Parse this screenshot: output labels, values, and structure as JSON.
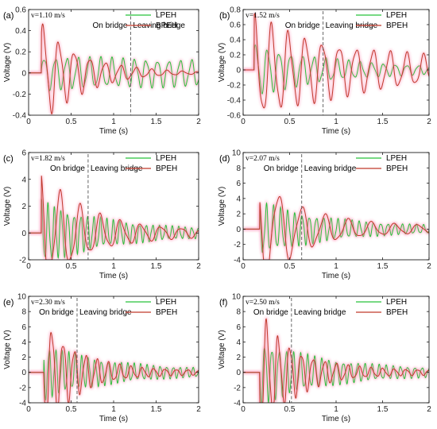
{
  "colors": {
    "LPEH": "#27c23a",
    "BPEH": "#c0392b",
    "glow": "#ff8fb3",
    "divider": "#555555"
  },
  "chart_data": [
    {
      "type": "line",
      "panel": "(a)",
      "velocity": "v=1.10 m/s",
      "xlabel": "Time (s)",
      "ylabel": "Voltage (V)",
      "xlim": [
        0,
        2
      ],
      "ylim": [
        -0.4,
        0.6
      ],
      "xticks": [
        0,
        0.5,
        1,
        1.5,
        2
      ],
      "yticks": [
        -0.4,
        -0.2,
        0,
        0.2,
        0.4,
        0.6
      ],
      "annotations": {
        "on_bridge": "On bridge",
        "leaving_bridge": "Leaving bridge"
      },
      "divider_x": 1.2,
      "series": [
        {
          "name": "LPEH",
          "start": 0.15,
          "freq": 7.5,
          "amp": 0.12,
          "decay": 0.15,
          "amp_x": 0.8,
          "values_note": ""
        },
        {
          "name": "BPEH",
          "peaks": [
            [
              0.2,
              0.4
            ],
            [
              0.27,
              0.47
            ],
            [
              0.23,
              -0.33
            ],
            [
              0.31,
              -0.3
            ],
            [
              0.6,
              0.18
            ],
            [
              1.2,
              -0.06
            ],
            [
              2.0,
              0.05
            ]
          ],
          "start": 0.15,
          "freq": 5.5,
          "amp": 0.45,
          "decay": 2.0
        }
      ],
      "legend": [
        "LPEH",
        "BPEH"
      ]
    },
    {
      "type": "line",
      "panel": "(b)",
      "velocity": "v=1.52 m/s",
      "xlabel": "Time (s)",
      "ylabel": "Voltage (V)",
      "xlim": [
        0,
        2
      ],
      "ylim": [
        -0.6,
        0.8
      ],
      "xticks": [
        0,
        0.5,
        1,
        1.5,
        2
      ],
      "yticks": [
        -0.6,
        -0.4,
        -0.2,
        0,
        0.2,
        0.4,
        0.6,
        0.8
      ],
      "annotations": {
        "on_bridge": "On bridge",
        "leaving_bridge": "Leaving bridge"
      },
      "divider_x": 0.86,
      "series": [
        {
          "name": "LPEH",
          "start": 0.12,
          "freq": 8.0,
          "amp": 0.3,
          "decay": 1.1,
          "amp_x": 0.2
        },
        {
          "name": "BPEH",
          "start": 0.12,
          "freq": 5.5,
          "amp": 0.55,
          "decay": 0.9,
          "amp_x": 0.6
        }
      ],
      "legend": [
        "LPEH",
        "BPEH"
      ]
    },
    {
      "type": "line",
      "panel": "(c)",
      "velocity": "v=1.82 m/s",
      "xlabel": "Time (s)",
      "ylabel": "Voltage (V)",
      "xlim": [
        0,
        2
      ],
      "ylim": [
        -2,
        6
      ],
      "xticks": [
        0,
        0.5,
        1,
        1.5,
        2
      ],
      "yticks": [
        -2,
        0,
        2,
        4,
        6
      ],
      "annotations": {
        "on_bridge": "On bridge",
        "leaving_bridge": "Leaving bridge"
      },
      "divider_x": 0.7,
      "series": [
        {
          "name": "LPEH",
          "start": 0.15,
          "freq": 13.0,
          "amp": 2.0,
          "decay": 1.2,
          "amp_x": 0.3
        },
        {
          "name": "BPEH",
          "start": 0.15,
          "freq": 4.2,
          "amp": 4.0,
          "decay": 1.9,
          "amp_x": 0.2
        }
      ],
      "legend": [
        "LPEH",
        "BPEH"
      ]
    },
    {
      "type": "line",
      "panel": "(d)",
      "velocity": "v=2.07 m/s",
      "xlabel": "Time (s)",
      "ylabel": "Voltage (V)",
      "xlim": [
        0,
        2
      ],
      "ylim": [
        -4,
        10
      ],
      "xticks": [
        0,
        0.5,
        1,
        1.5,
        2
      ],
      "yticks": [
        -4,
        -2,
        0,
        2,
        4,
        6,
        8,
        10
      ],
      "annotations": {
        "on_bridge": "On bridge",
        "leaving_bridge": "Leaving bridge"
      },
      "divider_x": 0.63,
      "series": [
        {
          "name": "LPEH",
          "start": 0.18,
          "freq": 13.0,
          "amp": 3.0,
          "decay": 1.3,
          "amp_x": 0.3
        },
        {
          "name": "BPEH",
          "start": 0.18,
          "freq": 4.0,
          "amp": 6.5,
          "decay": 2.2,
          "amp_x": 0.25
        }
      ],
      "legend": [
        "LPEH",
        "BPEH"
      ]
    },
    {
      "type": "line",
      "panel": "(e)",
      "velocity": "v=2.30 m/s",
      "xlabel": "Time (s)",
      "ylabel": "Voltage (V)",
      "xlim": [
        0,
        2
      ],
      "ylim": [
        -4,
        10
      ],
      "xticks": [
        0,
        0.5,
        1,
        1.5,
        2
      ],
      "yticks": [
        -4,
        -2,
        0,
        2,
        4,
        6,
        8,
        10
      ],
      "annotations": {
        "on_bridge": "On bridge",
        "leaving_bridge": "Leaving bridge"
      },
      "divider_x": 0.57,
      "series": [
        {
          "name": "LPEH",
          "start": 0.18,
          "freq": 13.0,
          "amp": 3.0,
          "decay": 1.2,
          "amp_x": 0.3
        },
        {
          "name": "BPEH",
          "start": 0.18,
          "freq": 7.5,
          "amp": 7.0,
          "decay": 2.6,
          "amp_x": 0.15
        }
      ],
      "legend": [
        "LPEH",
        "BPEH"
      ]
    },
    {
      "type": "line",
      "panel": "(f)",
      "velocity": "v=2.50 m/s",
      "xlabel": "Time (s)",
      "ylabel": "Voltage (V)",
      "xlim": [
        0,
        2
      ],
      "ylim": [
        -4,
        10
      ],
      "xticks": [
        0,
        0.5,
        1,
        1.5,
        2
      ],
      "yticks": [
        -4,
        -2,
        0,
        2,
        4,
        6,
        8,
        10
      ],
      "annotations": {
        "on_bridge": "On bridge",
        "leaving_bridge": "Leaving bridge"
      },
      "divider_x": 0.52,
      "series": [
        {
          "name": "LPEH",
          "start": 0.18,
          "freq": 13.0,
          "amp": 3.5,
          "decay": 1.3,
          "amp_x": 0.3
        },
        {
          "name": "BPEH",
          "start": 0.18,
          "freq": 8.0,
          "amp": 7.2,
          "decay": 2.6,
          "amp_x": 0.15
        }
      ],
      "legend": [
        "LPEH",
        "BPEH"
      ]
    }
  ]
}
